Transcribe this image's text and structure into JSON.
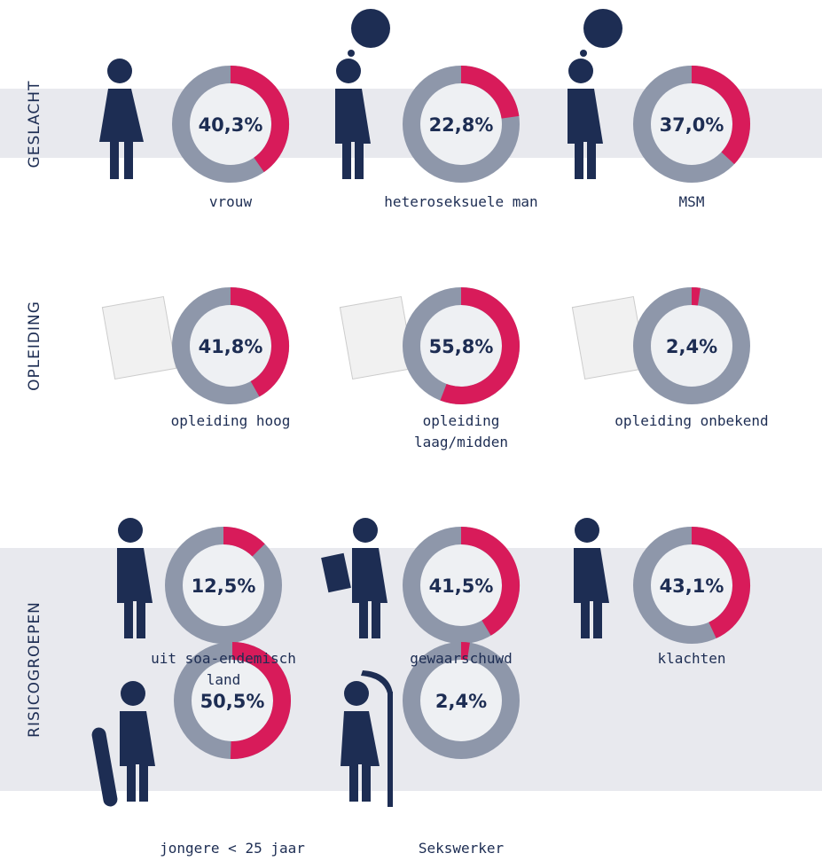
{
  "sections": [
    {
      "title": "GESLACHT"
    },
    {
      "title": "OPLEIDING"
    },
    {
      "title": "RISICOGROEPEN"
    }
  ],
  "chart_data": [
    {
      "type": "donut",
      "category": "vrouw",
      "values": [
        40.3
      ],
      "value_labels": [
        "40,3%"
      ]
    },
    {
      "type": "donut",
      "category": "heteroseksuele man",
      "values": [
        22.8
      ],
      "value_labels": [
        "22,8%"
      ]
    },
    {
      "type": "donut",
      "category": "MSM",
      "values": [
        37.0
      ],
      "value_labels": [
        "37,0%"
      ]
    },
    {
      "type": "donut",
      "category": "opleiding hoog",
      "values": [
        41.8
      ],
      "value_labels": [
        "41,8%"
      ]
    },
    {
      "type": "donut",
      "category": "opleiding laag/midden",
      "values": [
        55.8
      ],
      "value_labels": [
        "55,8%"
      ]
    },
    {
      "type": "donut",
      "category": "opleiding onbekend",
      "values": [
        2.4
      ],
      "value_labels": [
        "2,4%"
      ]
    },
    {
      "type": "donut",
      "category": "uit soa-endemisch land",
      "values": [
        12.5
      ],
      "value_labels": [
        "12,5%"
      ]
    },
    {
      "type": "donut",
      "category": "gewaarschuwd",
      "values": [
        41.5
      ],
      "value_labels": [
        "41,5%"
      ]
    },
    {
      "type": "donut",
      "category": "klachten",
      "values": [
        43.1
      ],
      "value_labels": [
        "43,1%"
      ]
    },
    {
      "type": "donut",
      "category": "jongere < 25 jaar",
      "values": [
        50.5
      ],
      "value_labels": [
        "50,5%"
      ]
    },
    {
      "type": "donut",
      "category": "Sekswerker",
      "values": [
        2.4
      ],
      "value_labels": [
        "2,4%"
      ]
    }
  ]
}
